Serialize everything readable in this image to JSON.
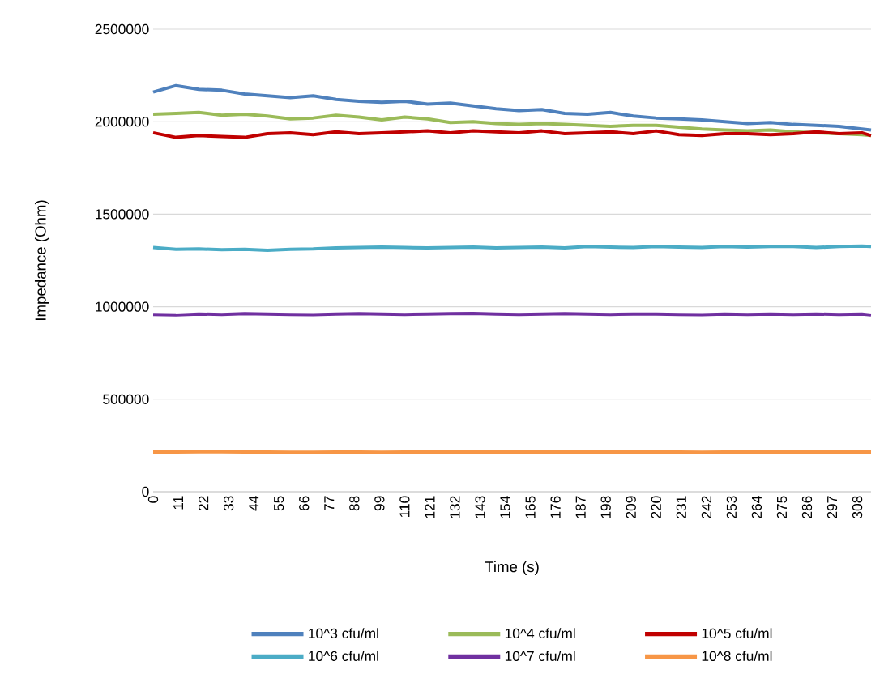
{
  "chart_data": {
    "type": "line",
    "xlabel": "Time (s)",
    "ylabel": "Impedance (Ohm)",
    "x": [
      0,
      10,
      20,
      30,
      40,
      50,
      60,
      70,
      80,
      90,
      100,
      110,
      120,
      130,
      140,
      150,
      160,
      170,
      180,
      190,
      200,
      210,
      220,
      230,
      240,
      250,
      260,
      270,
      280,
      290,
      300,
      310,
      314
    ],
    "series": [
      {
        "name": "10^3 cfu/ml",
        "color": "#4f81bd",
        "values": [
          2160000,
          2195000,
          2175000,
          2170000,
          2150000,
          2140000,
          2130000,
          2140000,
          2120000,
          2110000,
          2105000,
          2110000,
          2095000,
          2100000,
          2085000,
          2070000,
          2060000,
          2065000,
          2045000,
          2040000,
          2050000,
          2030000,
          2020000,
          2015000,
          2010000,
          2000000,
          1990000,
          1995000,
          1985000,
          1980000,
          1975000,
          1960000,
          1955000
        ]
      },
      {
        "name": "10^4 cfu/ml",
        "color": "#9bbb59",
        "values": [
          2040000,
          2045000,
          2050000,
          2035000,
          2040000,
          2030000,
          2015000,
          2020000,
          2035000,
          2025000,
          2010000,
          2025000,
          2015000,
          1995000,
          2000000,
          1990000,
          1985000,
          1990000,
          1985000,
          1980000,
          1975000,
          1980000,
          1980000,
          1970000,
          1960000,
          1955000,
          1950000,
          1955000,
          1945000,
          1940000,
          1935000,
          1930000,
          1925000
        ]
      },
      {
        "name": "10^5 cfu/ml",
        "color": "#c00000",
        "values": [
          1940000,
          1915000,
          1925000,
          1920000,
          1915000,
          1935000,
          1940000,
          1930000,
          1945000,
          1935000,
          1940000,
          1945000,
          1950000,
          1940000,
          1950000,
          1945000,
          1940000,
          1950000,
          1935000,
          1940000,
          1945000,
          1935000,
          1950000,
          1930000,
          1925000,
          1935000,
          1935000,
          1930000,
          1935000,
          1945000,
          1935000,
          1940000,
          1925000
        ]
      },
      {
        "name": "10^6 cfu/ml",
        "color": "#4bacc6",
        "values": [
          1320000,
          1310000,
          1312000,
          1308000,
          1310000,
          1305000,
          1310000,
          1312000,
          1318000,
          1320000,
          1322000,
          1320000,
          1318000,
          1320000,
          1322000,
          1318000,
          1320000,
          1322000,
          1318000,
          1325000,
          1322000,
          1320000,
          1325000,
          1322000,
          1320000,
          1325000,
          1322000,
          1325000,
          1325000,
          1320000,
          1325000,
          1328000,
          1325000
        ]
      },
      {
        "name": "10^7 cfu/ml",
        "color": "#7030a0",
        "values": [
          958000,
          955000,
          960000,
          958000,
          962000,
          960000,
          958000,
          957000,
          960000,
          962000,
          960000,
          958000,
          960000,
          962000,
          963000,
          960000,
          958000,
          960000,
          962000,
          960000,
          958000,
          960000,
          960000,
          958000,
          957000,
          960000,
          958000,
          960000,
          958000,
          960000,
          958000,
          960000,
          955000
        ]
      },
      {
        "name": "10^8 cfu/ml",
        "color": "#f79646",
        "values": [
          215000,
          215000,
          216000,
          216000,
          215000,
          215000,
          213000,
          213000,
          215000,
          214000,
          213000,
          214000,
          215000,
          215000,
          215000,
          214000,
          215000,
          215000,
          215000,
          214000,
          215000,
          215000,
          215000,
          214000,
          213000,
          215000,
          215000,
          214000,
          215000,
          214000,
          215000,
          215000,
          215000
        ]
      }
    ],
    "xlim": [
      0,
      314
    ],
    "xticks": [
      0,
      11,
      22,
      33,
      44,
      55,
      66,
      77,
      88,
      99,
      110,
      121,
      132,
      143,
      154,
      165,
      176,
      187,
      198,
      209,
      220,
      231,
      242,
      253,
      264,
      275,
      286,
      297,
      308
    ],
    "ylim": [
      0,
      2500000
    ],
    "yticks": [
      0,
      500000,
      1000000,
      1500000,
      2000000,
      2500000
    ],
    "grid": "y",
    "legend": "bottom",
    "marker": "none",
    "line_style": "solid"
  }
}
